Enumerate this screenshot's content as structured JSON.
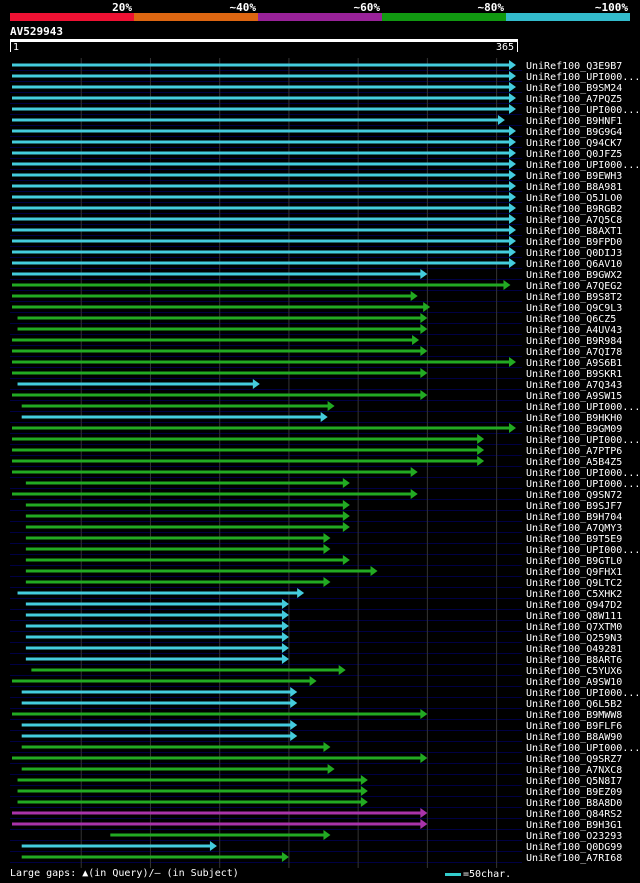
{
  "legend": {
    "labels": [
      "20%",
      "~40%",
      "~60%",
      "~80%",
      "~100%"
    ],
    "colors": [
      "#ee1133",
      "#dd6611",
      "#992299",
      "#119911",
      "#33bbcc"
    ]
  },
  "query": {
    "name": "AV529943",
    "start_label": "1",
    "end_label": "365",
    "length": 365
  },
  "footer": {
    "gaps_text": "Large gaps: ▲(in Query)/– (in Subject)",
    "scale_text": "=50char."
  },
  "chart_data": {
    "type": "bar",
    "x_range": [
      1,
      365
    ],
    "rows": [
      {
        "name": "UniRef100_Q3E9B7",
        "start": 1,
        "end": 365,
        "color": "cyan"
      },
      {
        "name": "UniRef100_UPI000...",
        "start": 1,
        "end": 365,
        "color": "cyan"
      },
      {
        "name": "UniRef100_B9SM24",
        "start": 1,
        "end": 365,
        "color": "cyan"
      },
      {
        "name": "UniRef100_A7PQZ5",
        "start": 1,
        "end": 365,
        "color": "cyan"
      },
      {
        "name": "UniRef100_UPI000...",
        "start": 1,
        "end": 365,
        "color": "cyan"
      },
      {
        "name": "UniRef100_B9HNF1",
        "start": 1,
        "end": 357,
        "color": "cyan"
      },
      {
        "name": "UniRef100_B9G9G4",
        "start": 1,
        "end": 365,
        "color": "cyan"
      },
      {
        "name": "UniRef100_Q94CK7",
        "start": 1,
        "end": 365,
        "color": "cyan"
      },
      {
        "name": "UniRef100_Q0JFZ5",
        "start": 1,
        "end": 365,
        "color": "cyan"
      },
      {
        "name": "UniRef100_UPI000...",
        "start": 1,
        "end": 365,
        "color": "cyan"
      },
      {
        "name": "UniRef100_B9EWH3",
        "start": 1,
        "end": 365,
        "color": "cyan"
      },
      {
        "name": "UniRef100_B8A981",
        "start": 1,
        "end": 365,
        "color": "cyan"
      },
      {
        "name": "UniRef100_Q5JLO0",
        "start": 1,
        "end": 365,
        "color": "cyan"
      },
      {
        "name": "UniRef100_B9RGB2",
        "start": 1,
        "end": 365,
        "color": "cyan"
      },
      {
        "name": "UniRef100_A7Q5C8",
        "start": 1,
        "end": 365,
        "color": "cyan"
      },
      {
        "name": "UniRef100_B8AXT1",
        "start": 1,
        "end": 365,
        "color": "cyan"
      },
      {
        "name": "UniRef100_B9FPD0",
        "start": 1,
        "end": 365,
        "color": "cyan"
      },
      {
        "name": "UniRef100_Q0DIJ3",
        "start": 1,
        "end": 365,
        "color": "cyan"
      },
      {
        "name": "UniRef100_Q6AV10",
        "start": 1,
        "end": 365,
        "color": "cyan"
      },
      {
        "name": "UniRef100_B9GWX2",
        "start": 1,
        "end": 301,
        "color": "cyan"
      },
      {
        "name": "UniRef100_A7QEG2",
        "start": 1,
        "end": 361,
        "color": "green"
      },
      {
        "name": "UniRef100_B9S8T2",
        "start": 1,
        "end": 294,
        "color": "green"
      },
      {
        "name": "UniRef100_Q9C9L3",
        "start": 1,
        "end": 303,
        "color": "green"
      },
      {
        "name": "UniRef100_Q6CZ5",
        "start": 5,
        "end": 301,
        "color": "green"
      },
      {
        "name": "UniRef100_A4UV43",
        "start": 5,
        "end": 301,
        "color": "green"
      },
      {
        "name": "UniRef100_B9R984",
        "start": 1,
        "end": 295,
        "color": "green"
      },
      {
        "name": "UniRef100_A7QI78",
        "start": 1,
        "end": 301,
        "color": "green"
      },
      {
        "name": "UniRef100_A9S6B1",
        "start": 1,
        "end": 365,
        "color": "green"
      },
      {
        "name": "UniRef100_B9SKR1",
        "start": 1,
        "end": 301,
        "color": "green"
      },
      {
        "name": "UniRef100_A7Q343",
        "start": 5,
        "end": 180,
        "color": "cyan"
      },
      {
        "name": "UniRef100_A9SW15",
        "start": 1,
        "end": 301,
        "color": "green"
      },
      {
        "name": "UniRef100_UPI000...",
        "start": 8,
        "end": 234,
        "color": "green"
      },
      {
        "name": "UniRef100_B9HKH0",
        "start": 8,
        "end": 229,
        "color": "cyan"
      },
      {
        "name": "UniRef100_B9GM09",
        "start": 1,
        "end": 365,
        "color": "green"
      },
      {
        "name": "UniRef100_UPI000...",
        "start": 1,
        "end": 342,
        "color": "green"
      },
      {
        "name": "UniRef100_A7PTP6",
        "start": 1,
        "end": 342,
        "color": "green"
      },
      {
        "name": "UniRef100_A5B4Z5",
        "start": 1,
        "end": 342,
        "color": "green"
      },
      {
        "name": "UniRef100_UPI000...",
        "start": 1,
        "end": 294,
        "color": "green"
      },
      {
        "name": "UniRef100_UPI000...",
        "start": 11,
        "end": 245,
        "color": "green"
      },
      {
        "name": "UniRef100_Q9SN72",
        "start": 1,
        "end": 294,
        "color": "green"
      },
      {
        "name": "UniRef100_B9SJF7",
        "start": 11,
        "end": 245,
        "color": "green"
      },
      {
        "name": "UniRef100_B9H704",
        "start": 11,
        "end": 245,
        "color": "green"
      },
      {
        "name": "UniRef100_A7QMY3",
        "start": 11,
        "end": 245,
        "color": "green"
      },
      {
        "name": "UniRef100_B9T5E9",
        "start": 11,
        "end": 231,
        "color": "green"
      },
      {
        "name": "UniRef100_UPI000...",
        "start": 11,
        "end": 231,
        "color": "green"
      },
      {
        "name": "UniRef100_B9GTL0",
        "start": 11,
        "end": 245,
        "color": "green"
      },
      {
        "name": "UniRef100_Q9FHX1",
        "start": 11,
        "end": 265,
        "color": "green"
      },
      {
        "name": "UniRef100_Q9LTC2",
        "start": 11,
        "end": 231,
        "color": "green"
      },
      {
        "name": "UniRef100_C5XHK2",
        "start": 5,
        "end": 212,
        "color": "cyan"
      },
      {
        "name": "UniRef100_Q947D2",
        "start": 11,
        "end": 201,
        "color": "cyan"
      },
      {
        "name": "UniRef100_Q8W111",
        "start": 11,
        "end": 201,
        "color": "cyan"
      },
      {
        "name": "UniRef100_Q7XTM0",
        "start": 11,
        "end": 201,
        "color": "cyan"
      },
      {
        "name": "UniRef100_Q259N3",
        "start": 11,
        "end": 201,
        "color": "cyan"
      },
      {
        "name": "UniRef100_O49281",
        "start": 11,
        "end": 201,
        "color": "cyan"
      },
      {
        "name": "UniRef100_B8ART6",
        "start": 11,
        "end": 201,
        "color": "cyan"
      },
      {
        "name": "UniRef100_C5YUX6",
        "start": 15,
        "end": 242,
        "color": "green"
      },
      {
        "name": "UniRef100_A9SW10",
        "start": 1,
        "end": 221,
        "color": "green"
      },
      {
        "name": "UniRef100_UPI000...",
        "start": 8,
        "end": 207,
        "color": "cyan"
      },
      {
        "name": "UniRef100_Q6L5B2",
        "start": 8,
        "end": 207,
        "color": "cyan"
      },
      {
        "name": "UniRef100_B9MWW8",
        "start": 1,
        "end": 301,
        "color": "green"
      },
      {
        "name": "UniRef100_B9FLF6",
        "start": 8,
        "end": 207,
        "color": "cyan"
      },
      {
        "name": "UniRef100_B8AW90",
        "start": 8,
        "end": 207,
        "color": "cyan"
      },
      {
        "name": "UniRef100_UPI000...",
        "start": 8,
        "end": 231,
        "color": "green"
      },
      {
        "name": "UniRef100_Q9SRZ7",
        "start": 1,
        "end": 301,
        "color": "green"
      },
      {
        "name": "UniRef100_A7NXC8",
        "start": 8,
        "end": 234,
        "color": "green"
      },
      {
        "name": "UniRef100_Q5N8I7",
        "start": 5,
        "end": 258,
        "color": "green"
      },
      {
        "name": "UniRef100_B9EZ09",
        "start": 5,
        "end": 258,
        "color": "green"
      },
      {
        "name": "UniRef100_B8A8D0",
        "start": 5,
        "end": 258,
        "color": "green"
      },
      {
        "name": "UniRef100_Q84RS2",
        "start": 1,
        "end": 301,
        "color": "magenta"
      },
      {
        "name": "UniRef100_B9H3G1",
        "start": 1,
        "end": 301,
        "color": "magenta"
      },
      {
        "name": "UniRef100_O23293",
        "start": 72,
        "end": 231,
        "color": "green"
      },
      {
        "name": "UniRef100_Q0DG99",
        "start": 8,
        "end": 149,
        "color": "cyan"
      },
      {
        "name": "UniRef100_A7RI68",
        "start": 8,
        "end": 201,
        "color": "green"
      }
    ]
  },
  "colors": {
    "cyan": "#44ccdd",
    "green": "#22aa22",
    "magenta": "#aa33aa",
    "background": "#000000",
    "gridline": "#333333",
    "rowline": "#000044"
  }
}
